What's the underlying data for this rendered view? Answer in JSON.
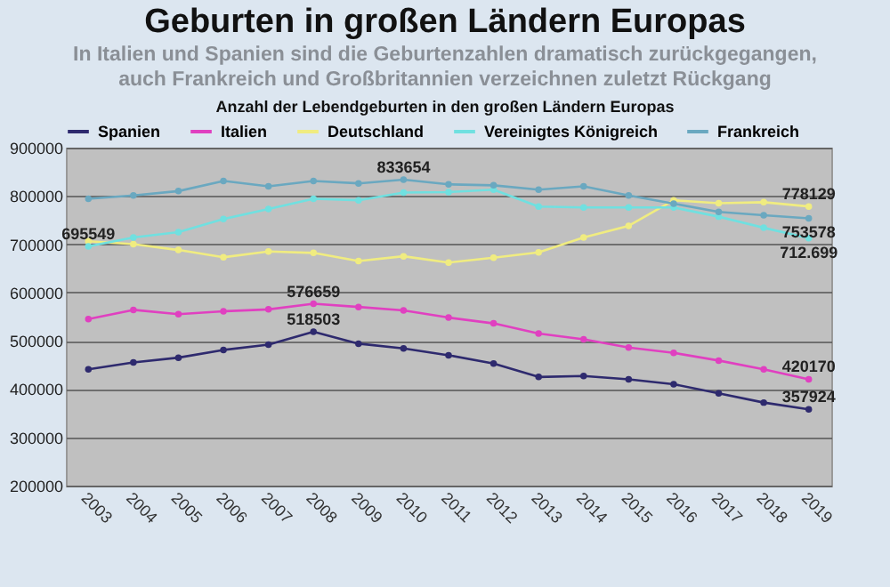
{
  "chart_data": {
    "type": "line",
    "title": "Geburten in großen Ländern Europas",
    "subtitle": "In Italien und Spanien sind die Geburtenzahlen dramatisch zurückgegangen,\nauch Frankreich und Großbritannien verzeichnen zuletzt Rückgang",
    "categories": [
      "2003",
      "2004",
      "2005",
      "2006",
      "2007",
      "2008",
      "2009",
      "2010",
      "2011",
      "2012",
      "2013",
      "2014",
      "2015",
      "2016",
      "2017",
      "2018",
      "2019"
    ],
    "series": [
      {
        "name": "Spanien",
        "color": "#2e2a6e",
        "values": [
          441000,
          455000,
          465000,
          481000,
          492000,
          518503,
          494000,
          484000,
          470000,
          453000,
          425000,
          427000,
          420000,
          410000,
          391000,
          372000,
          357924
        ]
      },
      {
        "name": "Italien",
        "color": "#e040c0",
        "values": [
          545000,
          564000,
          555000,
          561000,
          565000,
          576659,
          570000,
          563000,
          548000,
          536000,
          515000,
          503000,
          486000,
          475000,
          459000,
          441000,
          420170
        ]
      },
      {
        "name": "Deutschland",
        "color": "#f0ec80",
        "values": [
          706000,
          700000,
          688000,
          673000,
          685000,
          682000,
          665000,
          675000,
          662000,
          672000,
          683000,
          714000,
          738000,
          791000,
          785000,
          787000,
          778129
        ]
      },
      {
        "name": "Vereinigtes Königreich",
        "color": "#70e0e0",
        "values": [
          695549,
          714000,
          725000,
          752000,
          773000,
          794000,
          791000,
          807000,
          808000,
          813000,
          778000,
          776000,
          776000,
          776000,
          757000,
          734000,
          712699
        ]
      },
      {
        "name": "Frankreich",
        "color": "#6aa8c0",
        "values": [
          794000,
          801000,
          810000,
          831000,
          820000,
          831000,
          826000,
          833654,
          824000,
          822000,
          813000,
          820000,
          801000,
          784000,
          767000,
          760000,
          753578
        ]
      }
    ],
    "ylim": [
      200000,
      900000
    ],
    "yticks": [
      200000,
      300000,
      400000,
      500000,
      600000,
      700000,
      800000,
      900000
    ],
    "grid": "y",
    "legend": "top",
    "marker": "circle",
    "line_style": "solid",
    "annotations": [
      "Anzahl der Lebendgeburten in den großen Ländern Europas",
      {
        "text": "695549",
        "x": "2003",
        "y": 695549
      },
      {
        "text": "576659",
        "x": "2008",
        "y": 576659
      },
      {
        "text": "518503",
        "x": "2008",
        "y": 518503
      },
      {
        "text": "833654",
        "x": "2010",
        "y": 833654
      },
      {
        "text": "778129",
        "x": "2019",
        "y": 778129
      },
      {
        "text": "753578",
        "x": "2019",
        "y": 753578
      },
      {
        "text": "712.699",
        "x": "2019",
        "y": 712699
      },
      {
        "text": "420170",
        "x": "2019",
        "y": 420170
      },
      {
        "text": "357924",
        "x": "2019",
        "y": 357924
      }
    ]
  }
}
